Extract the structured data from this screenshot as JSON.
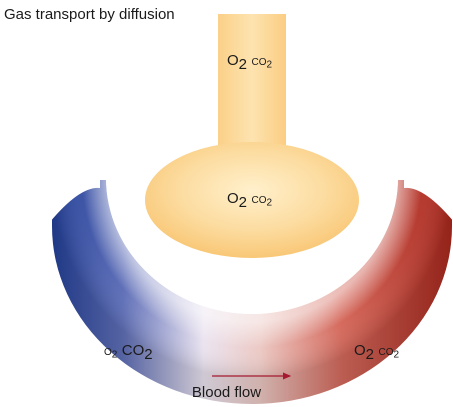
{
  "title": "Gas transport by diffusion",
  "tube": {
    "o": "O",
    "o_sub": "2",
    "c": "CO",
    "c_sub": "2"
  },
  "alveolus": {
    "o": "O",
    "o_sub": "2",
    "c": "CO",
    "c_sub": "2"
  },
  "capillary_left": {
    "o": "O",
    "o_sub": "2",
    "c": "CO",
    "c_sub": "2"
  },
  "capillary_right": {
    "o": "O",
    "o_sub": "2",
    "c": "CO",
    "c_sub": "2"
  },
  "blood_flow_label": "Blood flow",
  "colors": {
    "tissue": "#fbcf86",
    "tissue_light": "#fff3d4",
    "deoxygenated": "#2c4aa0",
    "oxygenated": "#b93528",
    "arrow": "#a51a30"
  }
}
